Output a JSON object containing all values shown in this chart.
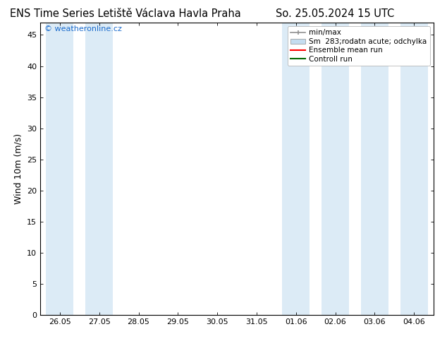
{
  "title_left": "ENS Time Series Letiště Václava Havla Praha",
  "title_right": "So. 25.05.2024 15 UTC",
  "ylabel": "Wind 10m (m/s)",
  "watermark": "© weatheronline.cz",
  "ylim": [
    0,
    47
  ],
  "yticks": [
    0,
    5,
    10,
    15,
    20,
    25,
    30,
    35,
    40,
    45
  ],
  "x_labels": [
    "26.05",
    "27.05",
    "28.05",
    "29.05",
    "30.05",
    "31.05",
    "01.06",
    "02.06",
    "03.06",
    "04.06"
  ],
  "n_days": 10,
  "band_color": "#d6e8f5",
  "band_alpha": 0.85,
  "band_indices": [
    0,
    1,
    6,
    7,
    8,
    9
  ],
  "background_color": "#ffffff",
  "title_fontsize": 10.5,
  "tick_fontsize": 8,
  "ylabel_fontsize": 9,
  "legend_fontsize": 7.5,
  "watermark_color": "#1a6bcc",
  "watermark_fontsize": 8,
  "minmax_color": "#909090",
  "band_legend_color": "#c5ddf0",
  "ensemble_color": "#ff0000",
  "controll_color": "#006600"
}
